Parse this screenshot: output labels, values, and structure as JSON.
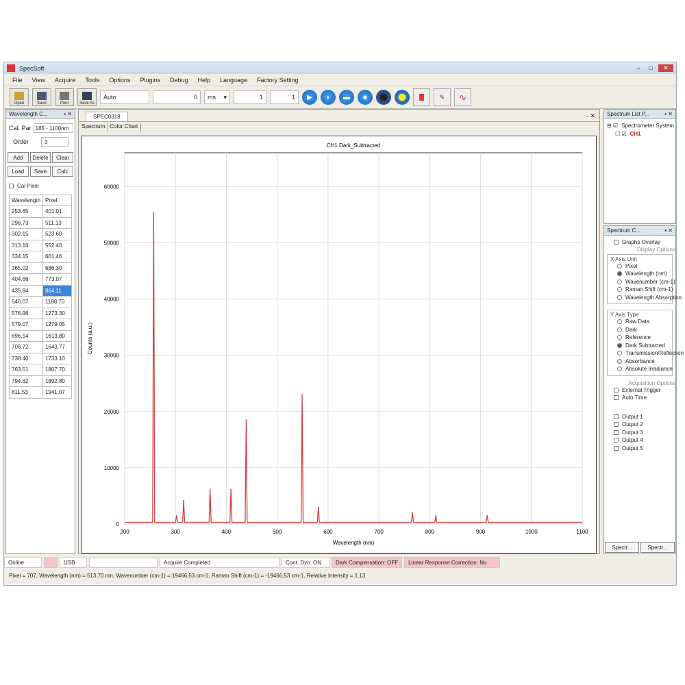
{
  "window": {
    "title": "SpecSoft"
  },
  "menu": [
    "File",
    "View",
    "Acquire",
    "Tools",
    "Options",
    "Plugins",
    "Debug",
    "Help",
    "Language",
    "Factory Setting"
  ],
  "toolbar": {
    "buttons": [
      "Open",
      "Save",
      "Print",
      "Save As"
    ],
    "fields": [
      "Auto",
      "0",
      "ms",
      "1",
      "1"
    ],
    "actions": [
      "start-icon",
      "single-acquire-icon",
      "stop-icon",
      "pause-icon",
      "dark-icon",
      "reference-icon",
      "record-icon",
      "peak-icon",
      "trend-icon"
    ]
  },
  "left_panel": {
    "title": "Wavelength C...",
    "cal_label": "Cal. Par",
    "cal_value": "185 - 1100nm",
    "order_label": "Order",
    "order_value": "3",
    "buttons": [
      "Add",
      "Delete",
      "Clear",
      "Load",
      "Save",
      "Calc"
    ],
    "checkbox": "Cal Pixel",
    "columns": [
      "Wavelength",
      "Pixel"
    ],
    "rows": [
      [
        "253.65",
        "401.01"
      ],
      [
        "296.73",
        "511.13"
      ],
      [
        "302.15",
        "523.60"
      ],
      [
        "313.16",
        "552.40"
      ],
      [
        "334.15",
        "601.46"
      ],
      [
        "365.02",
        "686.30"
      ],
      [
        "404.66",
        "773.07"
      ],
      [
        "435.84",
        "864.11"
      ],
      [
        "546.07",
        "1188.70"
      ],
      [
        "576.96",
        "1273.30"
      ],
      [
        "579.07",
        "1279.05"
      ],
      [
        "696.54",
        "1613.80"
      ],
      [
        "706.72",
        "1643.77"
      ],
      [
        "738.40",
        "1733.10"
      ],
      [
        "763.51",
        "1807.70"
      ],
      [
        "794.82",
        "1892.80"
      ],
      [
        "811.53",
        "1941.07"
      ]
    ],
    "selected_row": 7
  },
  "doc_tab": "SPEC0318",
  "view_tabs": [
    "Spectrum",
    "Color Chart"
  ],
  "chart_data": {
    "type": "line",
    "legend": "CH1 Dark_Subtracted",
    "legend_placement": "top-right",
    "xlabel": "Wavelength (nm)",
    "ylabel": "Counts (a.u.)",
    "xlim": [
      200,
      1100
    ],
    "ylim": [
      0,
      66000
    ],
    "grid": true,
    "xticks": [
      200,
      300,
      400,
      500,
      600,
      700,
      800,
      900,
      1000,
      1100
    ],
    "yticks": [
      0,
      10000,
      20000,
      30000,
      40000,
      50000,
      60000
    ],
    "peaks": [
      [
        257,
        55400
      ],
      [
        302,
        1500
      ],
      [
        316,
        4200
      ],
      [
        368,
        6200
      ],
      [
        409,
        6200
      ],
      [
        439,
        18500
      ],
      [
        549,
        23000
      ],
      [
        581,
        3000
      ],
      [
        766,
        2000
      ],
      [
        812,
        1500
      ],
      [
        913,
        1500
      ]
    ],
    "color": "#d04040"
  },
  "right_top": {
    "title": "Spectrum List P...",
    "items": [
      "Spectrometer System",
      "CH1"
    ]
  },
  "right_bottom": {
    "title": "Spectrum C...",
    "graph_overlay": "Graphs Overlay",
    "display_options": "Display Options",
    "xaxis_title": "X Axis Unit",
    "xaxis": [
      "Pixel",
      "Wavelength (nm)",
      "Wavenumber (cm-1)",
      "Raman Shift (cm-1)",
      "Wavelength Absorption"
    ],
    "xaxis_selected": 1,
    "yaxis_title": "Y Axis Type",
    "yaxis": [
      "Raw Data",
      "Dark",
      "Reference",
      "Dark Subtracted",
      "Transmission/Reflection",
      "Absorbance",
      "Absolute Irradiance"
    ],
    "yaxis_selected": 3,
    "acq_title": "Acquisition Options",
    "acq": [
      "External Trigger",
      "Auto Time"
    ],
    "outputs": [
      "Output 1",
      "Output 2",
      "Output 3",
      "Output 4",
      "Output 5"
    ],
    "tabs": [
      "Spectr...",
      "Spectr..."
    ]
  },
  "status1": [
    "Online",
    "",
    "USB",
    "",
    "Acquire Completed",
    "Cont. Dyn: ON",
    "Dark Compensation: OFF",
    "Linear Response Correction: No"
  ],
  "status2": "Pixel = 707, Wavelength (nm) = 513.70 nm, Wavenumber (cm-1) = 19466.53 cm-1, Raman Shift (cm-1) = -19466.53 cm-1, Relative Intensity = 1.13"
}
